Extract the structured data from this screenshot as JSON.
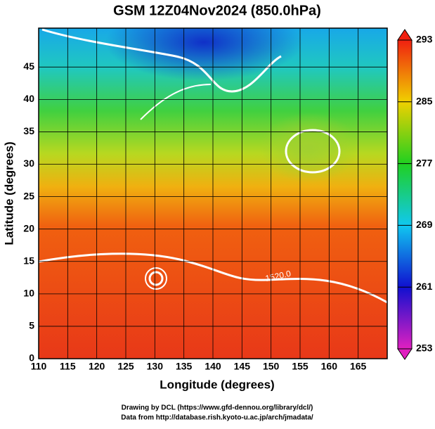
{
  "chart_data": {
    "type": "map",
    "title": "GSM 12Z04Nov2024 (850.0hPa)",
    "x_label": "Longitude (degrees)",
    "y_label": "Latitude  (degrees)",
    "xlim": [
      110,
      170
    ],
    "ylim": [
      0,
      51
    ],
    "xticks": [
      110,
      115,
      120,
      125,
      130,
      135,
      140,
      145,
      150,
      155,
      160,
      165
    ],
    "yticks": [
      0,
      5,
      10,
      15,
      20,
      25,
      30,
      35,
      40,
      45
    ],
    "grid": true,
    "colorbar": {
      "lim": [
        253,
        293
      ],
      "ticks": [
        253,
        261,
        269,
        277,
        285,
        293
      ],
      "colors": [
        "#e020c0",
        "#1010d0",
        "#10c8f0",
        "#20d020",
        "#f0d000",
        "#f02010"
      ]
    },
    "annotations": [
      "1520.0"
    ],
    "footer": [
      "Drawing by DCL (https://www.gfd-dennou.org/library/dcl/)",
      "Data from http://database.rish.kyoto-u.ac.jp/arch/jmadata/"
    ]
  }
}
